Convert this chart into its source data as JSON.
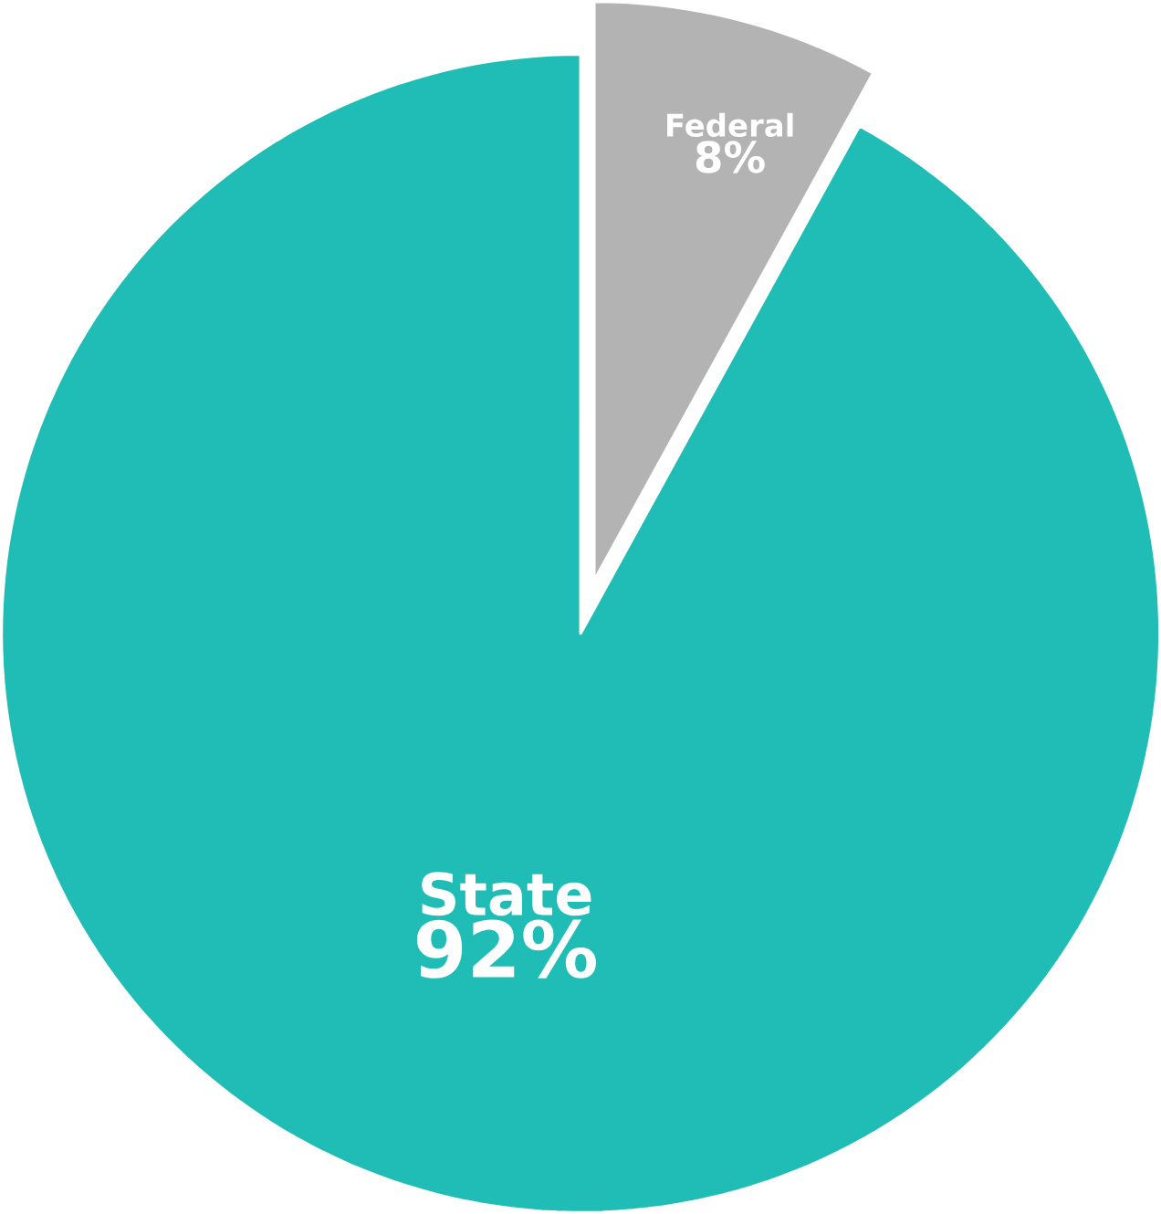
{
  "chart_data": {
    "type": "pie",
    "categories": [
      "Federal",
      "State"
    ],
    "values": [
      8,
      92
    ],
    "colors": [
      "#b3b3b3",
      "#1fbdb5"
    ],
    "value_labels": [
      "8%",
      "92%"
    ]
  }
}
